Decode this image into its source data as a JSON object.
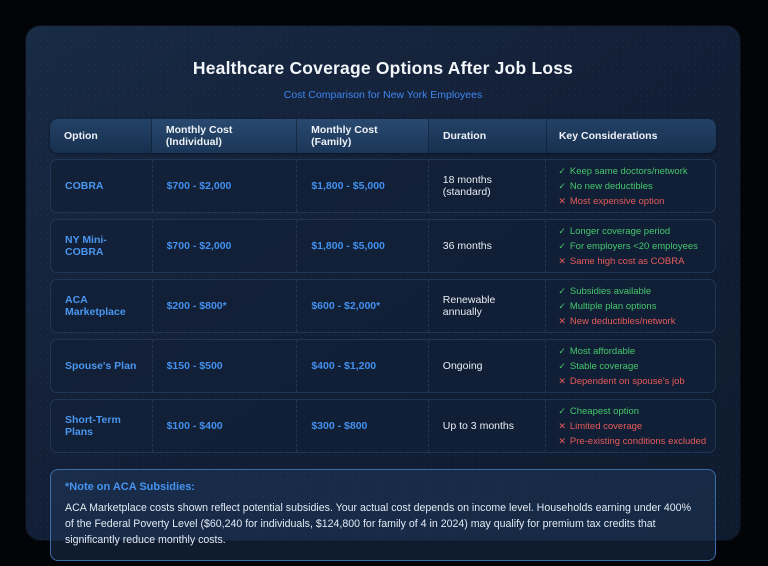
{
  "header": {
    "title": "Healthcare Coverage Options After Job Loss",
    "subtitle": "Cost Comparison for New York Employees"
  },
  "icons": {
    "pro": "✓",
    "con": "✕"
  },
  "colors": {
    "background": "#020408",
    "panel": "#131f36",
    "accent_blue": "#3f86f0",
    "pro_green": "#45c76c",
    "con_red": "#e65a5a",
    "header_cell": "#1d3a5e"
  },
  "table": {
    "columns": [
      "Option",
      "Monthly Cost (Individual)",
      "Monthly Cost (Family)",
      "Duration",
      "Key Considerations"
    ],
    "rows": [
      {
        "option": "COBRA",
        "cost_individual": "$700 - $2,000",
        "cost_family": "$1,800 - $5,000",
        "duration": "18 months (standard)",
        "considerations": [
          {
            "type": "pro",
            "text": "Keep same doctors/network"
          },
          {
            "type": "pro",
            "text": "No new deductibles"
          },
          {
            "type": "con",
            "text": "Most expensive option"
          }
        ]
      },
      {
        "option": "NY Mini-COBRA",
        "cost_individual": "$700 - $2,000",
        "cost_family": "$1,800 - $5,000",
        "duration": "36 months",
        "considerations": [
          {
            "type": "pro",
            "text": "Longer coverage period"
          },
          {
            "type": "pro",
            "text": "For employers <20 employees"
          },
          {
            "type": "con",
            "text": "Same high cost as COBRA"
          }
        ]
      },
      {
        "option": "ACA Marketplace",
        "cost_individual": "$200 - $800*",
        "cost_family": "$600 - $2,000*",
        "duration": "Renewable annually",
        "considerations": [
          {
            "type": "pro",
            "text": "Subsidies available"
          },
          {
            "type": "pro",
            "text": "Multiple plan options"
          },
          {
            "type": "con",
            "text": "New deductibles/network"
          }
        ]
      },
      {
        "option": "Spouse's Plan",
        "cost_individual": "$150 - $500",
        "cost_family": "$400 - $1,200",
        "duration": "Ongoing",
        "considerations": [
          {
            "type": "pro",
            "text": "Most affordable"
          },
          {
            "type": "pro",
            "text": "Stable coverage"
          },
          {
            "type": "con",
            "text": "Dependent on spouse's job"
          }
        ]
      },
      {
        "option": "Short-Term Plans",
        "cost_individual": "$100 - $400",
        "cost_family": "$300 - $800",
        "duration": "Up to 3 months",
        "considerations": [
          {
            "type": "pro",
            "text": "Cheapest option"
          },
          {
            "type": "con",
            "text": "Limited coverage"
          },
          {
            "type": "con",
            "text": "Pre-existing conditions excluded"
          }
        ]
      }
    ]
  },
  "note": {
    "title": "*Note on ACA Subsidies:",
    "body": "ACA Marketplace costs shown reflect potential subsidies. Your actual cost depends on income level. Households earning under 400% of the Federal Poverty Level ($60,240 for individuals, $124,800 for family of 4 in 2024) may qualify for premium tax credits that significantly reduce monthly costs."
  }
}
